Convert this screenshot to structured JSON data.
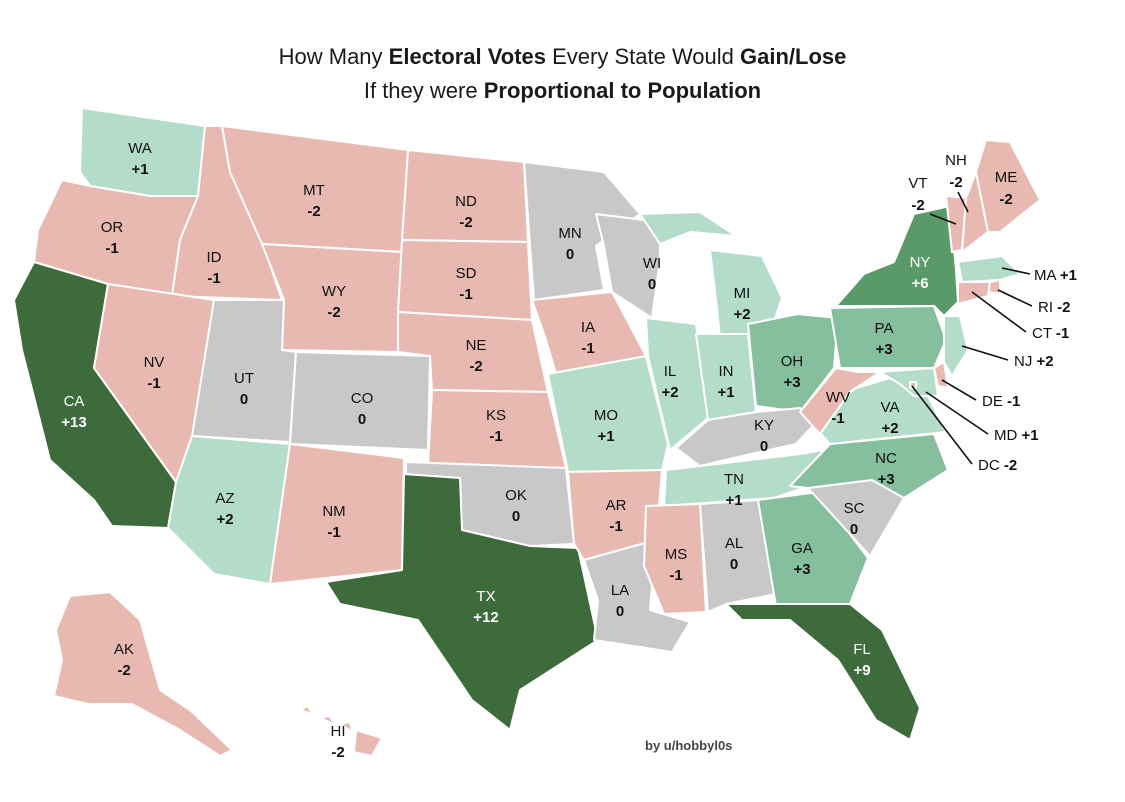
{
  "title": {
    "line1": [
      {
        "text": "How Many ",
        "bold": false
      },
      {
        "text": "Electoral Votes",
        "bold": true
      },
      {
        "text": " Every State Would ",
        "bold": false
      },
      {
        "text": "Gain/Lose",
        "bold": true
      }
    ],
    "line2": [
      {
        "text": "If they were ",
        "bold": false
      },
      {
        "text": "Proportional to Population",
        "bold": true
      }
    ]
  },
  "credit": "by u/hobbyl0s",
  "colors": {
    "lose": "#e8b9b1",
    "zero": "#c8c8c8",
    "gain_small": "#b4dccb",
    "gain_mid": "#86bf9d",
    "gain_large": "#5a9a68",
    "gain_xlarge": "#3d6b3c"
  },
  "states": [
    {
      "abbr": "WA",
      "value": "+1"
    },
    {
      "abbr": "OR",
      "value": "-1"
    },
    {
      "abbr": "CA",
      "value": "+13"
    },
    {
      "abbr": "ID",
      "value": "-1"
    },
    {
      "abbr": "NV",
      "value": "-1"
    },
    {
      "abbr": "MT",
      "value": "-2"
    },
    {
      "abbr": "WY",
      "value": "-2"
    },
    {
      "abbr": "UT",
      "value": "0"
    },
    {
      "abbr": "AZ",
      "value": "+2"
    },
    {
      "abbr": "CO",
      "value": "0"
    },
    {
      "abbr": "NM",
      "value": "-1"
    },
    {
      "abbr": "ND",
      "value": "-2"
    },
    {
      "abbr": "SD",
      "value": "-1"
    },
    {
      "abbr": "NE",
      "value": "-2"
    },
    {
      "abbr": "KS",
      "value": "-1"
    },
    {
      "abbr": "OK",
      "value": "0"
    },
    {
      "abbr": "TX",
      "value": "+12"
    },
    {
      "abbr": "MN",
      "value": "0"
    },
    {
      "abbr": "IA",
      "value": "-1"
    },
    {
      "abbr": "MO",
      "value": "+1"
    },
    {
      "abbr": "AR",
      "value": "-1"
    },
    {
      "abbr": "LA",
      "value": "0"
    },
    {
      "abbr": "WI",
      "value": "0"
    },
    {
      "abbr": "IL",
      "value": "+2"
    },
    {
      "abbr": "MI",
      "value": "+2"
    },
    {
      "abbr": "IN",
      "value": "+1"
    },
    {
      "abbr": "OH",
      "value": "+3"
    },
    {
      "abbr": "KY",
      "value": "0"
    },
    {
      "abbr": "TN",
      "value": "+1"
    },
    {
      "abbr": "MS",
      "value": "-1"
    },
    {
      "abbr": "AL",
      "value": "0"
    },
    {
      "abbr": "GA",
      "value": "+3"
    },
    {
      "abbr": "FL",
      "value": "+9"
    },
    {
      "abbr": "SC",
      "value": "0"
    },
    {
      "abbr": "NC",
      "value": "+3"
    },
    {
      "abbr": "VA",
      "value": "+2"
    },
    {
      "abbr": "WV",
      "value": "-1"
    },
    {
      "abbr": "PA",
      "value": "+3"
    },
    {
      "abbr": "NY",
      "value": "+6"
    },
    {
      "abbr": "VT",
      "value": "-2"
    },
    {
      "abbr": "NH",
      "value": "-2"
    },
    {
      "abbr": "ME",
      "value": "-2"
    },
    {
      "abbr": "MA",
      "value": "+1"
    },
    {
      "abbr": "RI",
      "value": "-2"
    },
    {
      "abbr": "CT",
      "value": "-1"
    },
    {
      "abbr": "NJ",
      "value": "+2"
    },
    {
      "abbr": "DE",
      "value": "-1"
    },
    {
      "abbr": "MD",
      "value": "+1"
    },
    {
      "abbr": "DC",
      "value": "-2"
    },
    {
      "abbr": "AK",
      "value": "-2"
    },
    {
      "abbr": "HI",
      "value": "-2"
    }
  ]
}
